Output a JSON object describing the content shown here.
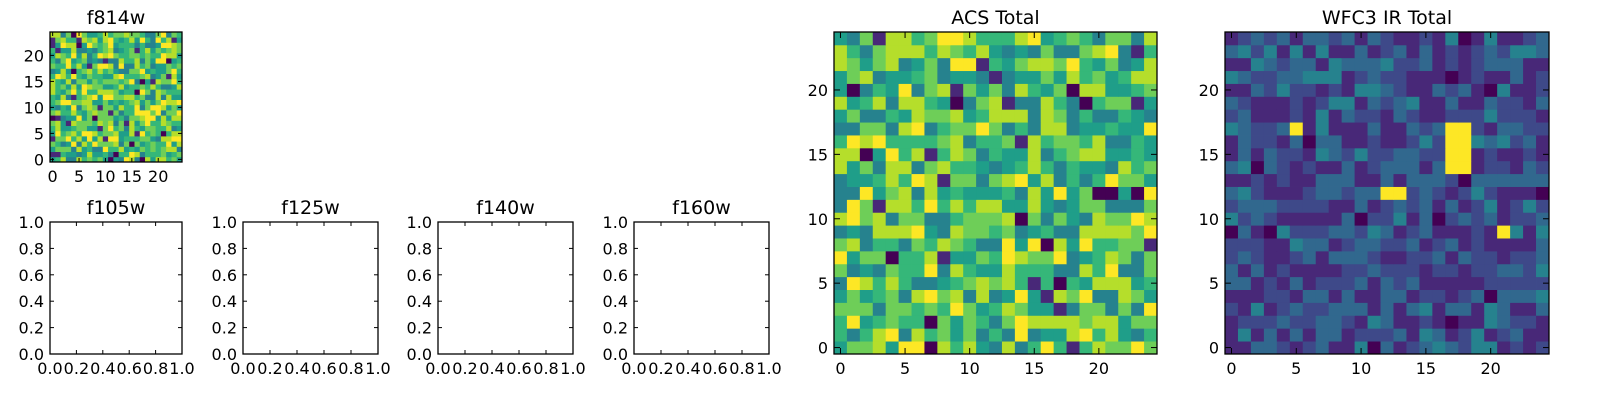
{
  "chart_data": [
    {
      "type": "heatmap",
      "title": "f814w",
      "grid_size": [
        25,
        25
      ],
      "x_ticks": [
        0,
        5,
        10,
        15,
        20
      ],
      "y_ticks": [
        0,
        5,
        10,
        15,
        20
      ],
      "xlim": [
        -0.5,
        24.5
      ],
      "ylim": [
        -0.5,
        24.5
      ],
      "colormap": "viridis",
      "note": "random per-pixel noise image, mostly green-yellow values",
      "value_range": [
        0,
        1
      ]
    },
    {
      "type": "empty-axes",
      "title": "f105w",
      "x_tick_labels": [
        "0.0",
        "0.2",
        "0.4",
        "0.6",
        "0.8",
        "1.0"
      ],
      "y_tick_labels": [
        "0.0",
        "0.2",
        "0.4",
        "0.6",
        "0.8",
        "1.0"
      ],
      "xlim": [
        0,
        1
      ],
      "ylim": [
        0,
        1
      ]
    },
    {
      "type": "empty-axes",
      "title": "f125w",
      "x_tick_labels": [
        "0.0",
        "0.2",
        "0.4",
        "0.6",
        "0.8",
        "1.0"
      ],
      "y_tick_labels": [
        "0.0",
        "0.2",
        "0.4",
        "0.6",
        "0.8",
        "1.0"
      ],
      "xlim": [
        0,
        1
      ],
      "ylim": [
        0,
        1
      ]
    },
    {
      "type": "empty-axes",
      "title": "f140w",
      "x_tick_labels": [
        "0.0",
        "0.2",
        "0.4",
        "0.6",
        "0.8",
        "1.0"
      ],
      "y_tick_labels": [
        "0.0",
        "0.2",
        "0.4",
        "0.6",
        "0.8",
        "1.0"
      ],
      "xlim": [
        0,
        1
      ],
      "ylim": [
        0,
        1
      ]
    },
    {
      "type": "empty-axes",
      "title": "f160w",
      "x_tick_labels": [
        "0.0",
        "0.2",
        "0.4",
        "0.6",
        "0.8",
        "1.0"
      ],
      "y_tick_labels": [
        "0.0",
        "0.2",
        "0.4",
        "0.6",
        "0.8",
        "1.0"
      ],
      "xlim": [
        0,
        1
      ],
      "ylim": [
        0,
        1
      ]
    },
    {
      "type": "heatmap",
      "title": "ACS Total",
      "grid_size": [
        25,
        25
      ],
      "x_ticks": [
        0,
        5,
        10,
        15,
        20
      ],
      "y_ticks": [
        0,
        5,
        10,
        15,
        20
      ],
      "xlim": [
        -0.5,
        24.5
      ],
      "ylim": [
        -0.5,
        24.5
      ],
      "colormap": "viridis",
      "note": "random noise image, values mostly in upper half of colormap",
      "value_range": [
        0,
        1
      ]
    },
    {
      "type": "heatmap",
      "title": "WFC3 IR Total",
      "grid_size": [
        25,
        25
      ],
      "x_ticks": [
        0,
        5,
        10,
        15,
        20
      ],
      "y_ticks": [
        0,
        5,
        10,
        15,
        20
      ],
      "xlim": [
        -0.5,
        24.5
      ],
      "ylim": [
        -0.5,
        24.5
      ],
      "colormap": "viridis",
      "note": "mostly dark blue noise with a bright yellow source near x=18, y=14-17 and smaller bright pixels near (5,17), (12-13,12), (21,9)",
      "value_range": [
        0,
        1
      ],
      "bright_pixels": [
        [
          17,
          17
        ],
        [
          18,
          17
        ],
        [
          17,
          16
        ],
        [
          18,
          16
        ],
        [
          17,
          15
        ],
        [
          18,
          15
        ],
        [
          17,
          14
        ],
        [
          18,
          14
        ],
        [
          5,
          17
        ],
        [
          12,
          12
        ],
        [
          13,
          12
        ],
        [
          21,
          9
        ]
      ]
    }
  ],
  "colors": {
    "viridis": [
      "#440154",
      "#482878",
      "#3e4989",
      "#31688e",
      "#26828e",
      "#1f9e89",
      "#35b779",
      "#6ece58",
      "#b5de2b",
      "#fde725"
    ]
  }
}
